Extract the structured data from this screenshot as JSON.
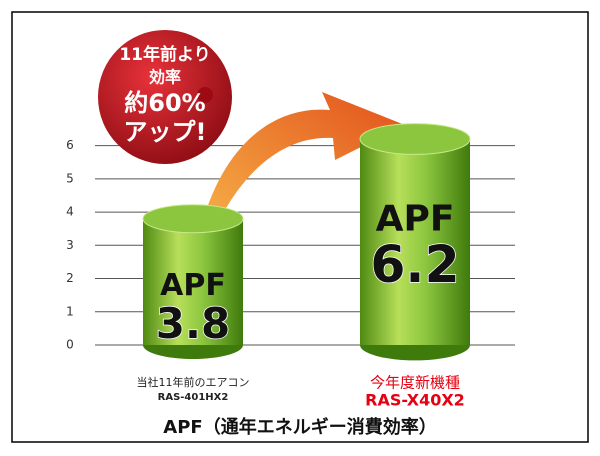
{
  "chart_data": {
    "type": "cylinder-bar",
    "title": "APF（通年エネルギー消費効率）",
    "categories": [
      [
        "当社11年前のエアコン",
        "RAS-401HX2"
      ],
      [
        "今年度新機種",
        "RAS-X40X2"
      ]
    ],
    "category_colors": [
      "#222222",
      "#e60012"
    ],
    "values": [
      3.8,
      6.2
    ],
    "bar_label": "APF",
    "color": "#8cc63f",
    "annotation": [
      "11年前より",
      "効率",
      "約60%",
      "アップ!"
    ],
    "ylim": [
      0,
      6.5
    ],
    "yticks": [
      0,
      1,
      2,
      3,
      4,
      5,
      6
    ],
    "grid": true
  }
}
